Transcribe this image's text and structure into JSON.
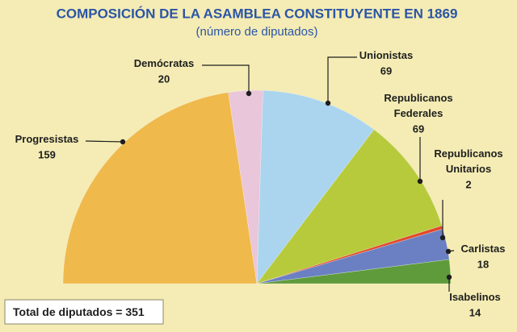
{
  "chart_data": {
    "type": "half-pie",
    "title": "COMPOSICIÓN DE LA ASAMBLEA CONSTITUYENTE EN 1869",
    "subtitle": "(número de diputados)",
    "categories": [
      "Progresistas",
      "Demócratas",
      "Unionistas",
      "Republicanos Federales",
      "Republicanos Unitarios",
      "Carlistas",
      "Isabelinos"
    ],
    "values": [
      159,
      20,
      69,
      69,
      2,
      18,
      14
    ],
    "colors": [
      "#f0b94c",
      "#e9c6da",
      "#abd5ee",
      "#b7ca3c",
      "#e2482a",
      "#6b80c2",
      "#5f9b3b"
    ],
    "total_label": "Total de diputados =",
    "total": 351
  }
}
